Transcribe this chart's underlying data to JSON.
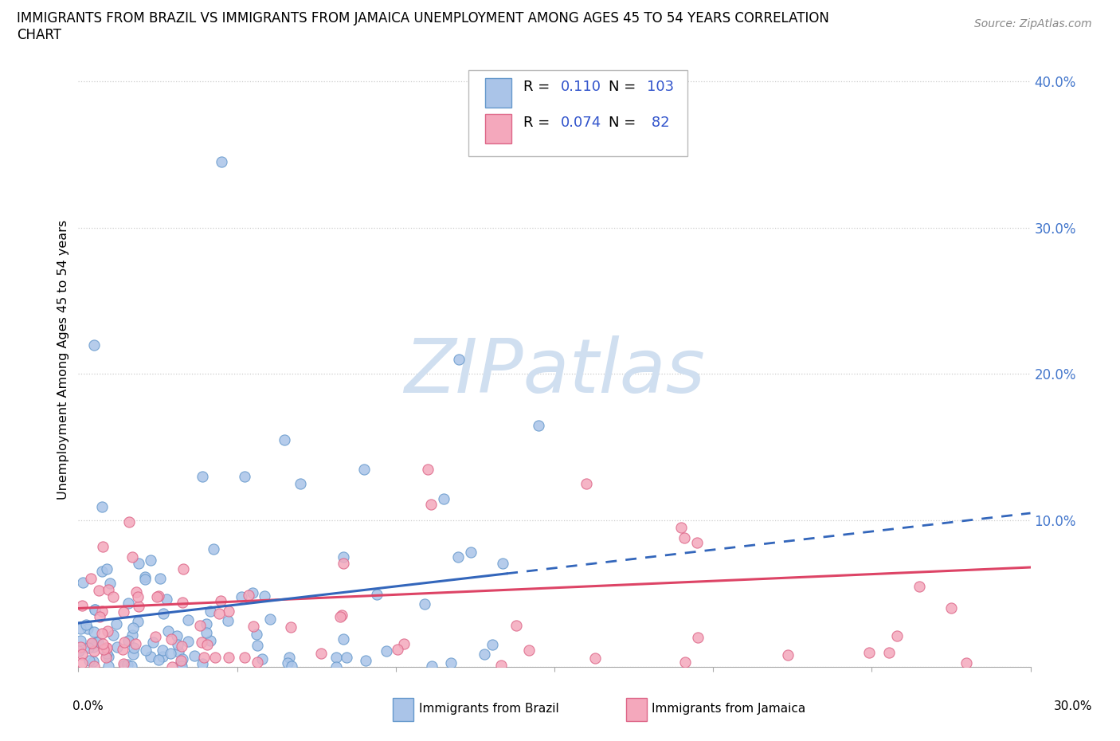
{
  "title_line1": "IMMIGRANTS FROM BRAZIL VS IMMIGRANTS FROM JAMAICA UNEMPLOYMENT AMONG AGES 45 TO 54 YEARS CORRELATION",
  "title_line2": "CHART",
  "source": "Source: ZipAtlas.com",
  "ylabel": "Unemployment Among Ages 45 to 54 years",
  "xlim": [
    0.0,
    0.3
  ],
  "ylim": [
    0.0,
    0.42
  ],
  "brazil_color": "#aac4e8",
  "brazil_edge_color": "#6699cc",
  "jamaica_color": "#f4a8bc",
  "jamaica_edge_color": "#dd6688",
  "brazil_line_color": "#3366bb",
  "jamaica_line_color": "#dd4466",
  "background_color": "#ffffff",
  "grid_color": "#cccccc",
  "legend_text_color": "#3355cc",
  "watermark_color": "#d0dff0",
  "title_fontsize": 12,
  "source_fontsize": 10,
  "ytick_color": "#4477cc",
  "scatter_size": 90
}
